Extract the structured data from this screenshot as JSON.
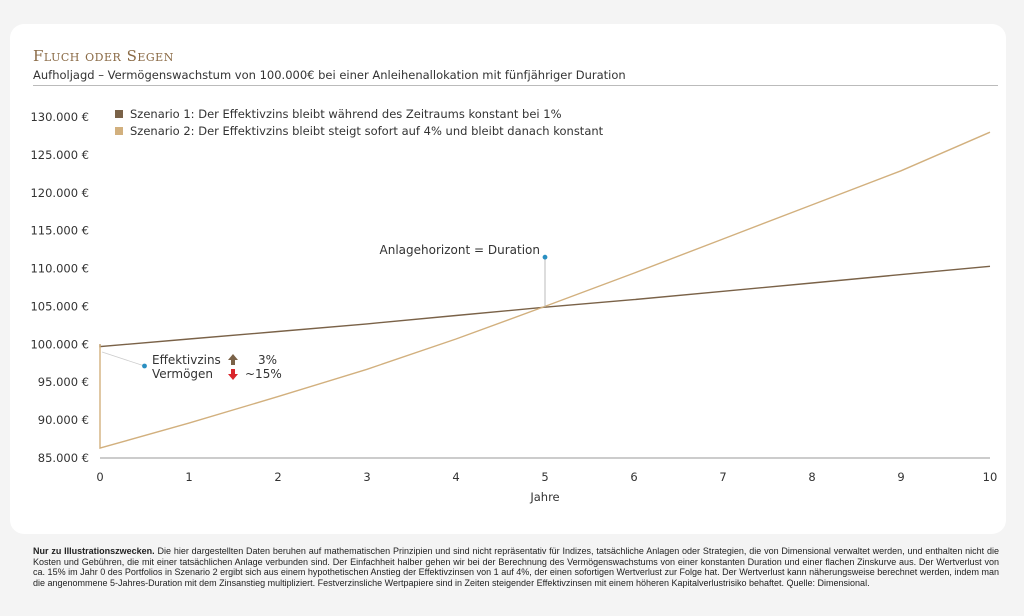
{
  "title": "Fluch oder Segen",
  "subtitle": "Aufholjagd – Vermögenswachstum von 100.000€ bei einer Anleihenallokation mit fünfjähriger Duration",
  "footnote": {
    "bold": "Nur zu Illustrationszwecken.",
    "text": " Die hier dargestellten Daten beruhen auf mathematischen Prinzipien und sind nicht repräsentativ für Indizes, tatsächliche Anlagen oder Strategien, die von Dimensional verwaltet werden, und enthalten nicht die Kosten und Gebühren, die mit einer tatsächlichen Anlage verbunden sind. Der Einfachheit halber gehen wir bei der Berechnung des Vermögenswachstums von einer konstanten Duration und einer flachen Zinskurve aus. Der Wertverlust von ca. 15% im Jahr 0 des Portfolios in Szenario 2 ergibt sich aus einem hypothetischen Anstieg der Effektivzinsen von 1 auf 4%, der einen sofortigen Wertverlust zur Folge hat. Der Wertverlust kann näherungsweise berechnet werden, indem man die angenommene 5-Jahres-Duration mit dem Zinsanstieg multipliziert. Festverzinsliche Wertpapiere sind in Zeiten steigender Effektivzinsen mit einem höheren Kapitalverlustrisiko behaftet. Quelle: Dimensional."
  },
  "chart_data": {
    "type": "line",
    "xlabel": "Jahre",
    "ylabel": "",
    "xlim": [
      0,
      10
    ],
    "ylim": [
      85000,
      130000
    ],
    "x_ticks": [
      0,
      1,
      2,
      3,
      4,
      5,
      6,
      7,
      8,
      9,
      10
    ],
    "y_ticks": [
      85000,
      90000,
      95000,
      100000,
      105000,
      110000,
      115000,
      120000,
      125000,
      130000
    ],
    "y_tick_labels": [
      "85.000 €",
      "90.000 €",
      "95.000 €",
      "100.000 €",
      "105.000 €",
      "110.000 €",
      "115.000 €",
      "120.000 €",
      "125.000 €",
      "130.000 €"
    ],
    "legend_position": "top-left",
    "grid": false,
    "series": [
      {
        "name": "Szenario 1: Der Effektivzins bleibt während des Zeitraums konstant bei 1%",
        "color": "#7a6248",
        "x": [
          0,
          0,
          1,
          2,
          3,
          4,
          5,
          6,
          7,
          8,
          9,
          10
        ],
        "y": [
          100000,
          99700,
          100700,
          101700,
          102700,
          103800,
          104900,
          105900,
          107000,
          108100,
          109200,
          110300
        ]
      },
      {
        "name": "Szenario 2: Der Effektivzins bleibt steigt sofort auf 4% und bleibt danach konstant",
        "color": "#d2b07e",
        "x": [
          0,
          0,
          1,
          2,
          3,
          4,
          5,
          6,
          7,
          8,
          9,
          10
        ],
        "y": [
          100000,
          86300,
          89600,
          93100,
          96700,
          100700,
          105000,
          109400,
          113900,
          118400,
          122900,
          128000
        ]
      }
    ],
    "annotations": [
      {
        "text": "Anlagehorizont = Duration",
        "x": 5,
        "y": 111500,
        "color": "#2a8fc1"
      },
      {
        "text": "Effektivzins",
        "value": "3%",
        "direction": "up",
        "arrow_color": "#7a6248"
      },
      {
        "text": "Vermögen",
        "value": "~15%",
        "direction": "down",
        "arrow_color": "#d9262c"
      }
    ]
  }
}
